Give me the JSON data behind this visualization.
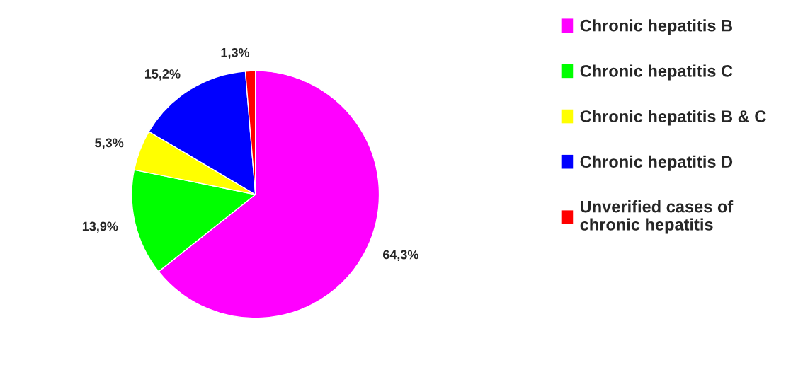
{
  "chart_data": {
    "type": "pie",
    "categories": [
      "Chronic hepatitis B",
      "Chronic hepatitis C",
      "Chronic hepatitis B & C",
      "Chronic hepatitis D",
      "Unverified cases of\nchronic hepatitis"
    ],
    "values": [
      64.3,
      13.9,
      5.3,
      15.2,
      1.3
    ],
    "colors": [
      "#ff00ff",
      "#00ff00",
      "#ffff00",
      "#0000ff",
      "#ff0000"
    ],
    "value_labels": [
      "64,3%",
      "13,9%",
      "5,3%",
      "15,2%",
      "1,3%"
    ],
    "legend": "right"
  }
}
